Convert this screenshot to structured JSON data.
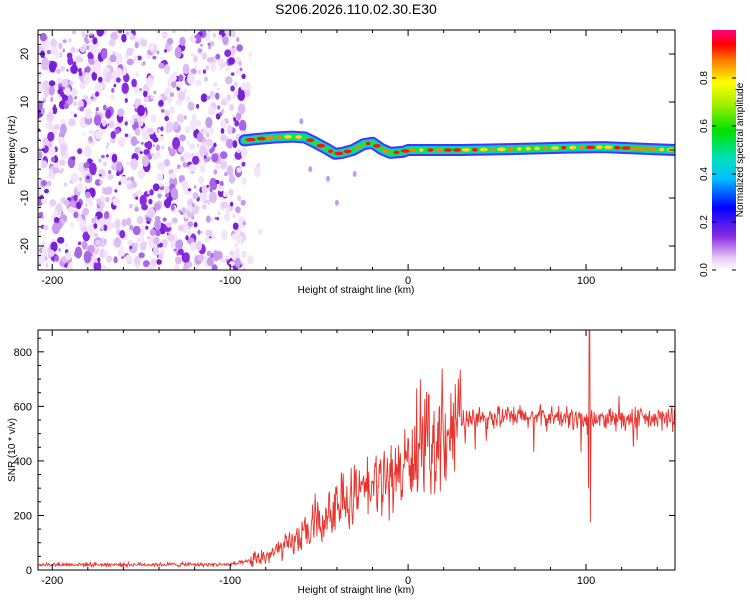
{
  "title": "S206.2026.110.02.30.E30",
  "chart_data": [
    {
      "type": "heatmap",
      "name": "spectrogram",
      "xlabel": "Height of straight line (km)",
      "ylabel": "Frequency (Hz)",
      "xlim": [
        -208,
        150
      ],
      "ylim": [
        -25,
        25
      ],
      "xticks": [
        -200,
        -100,
        0,
        100
      ],
      "yticks": [
        -20,
        -10,
        0,
        10,
        20
      ],
      "noise_region_x": [
        -208,
        -92
      ],
      "signal_track": [
        {
          "x": -92,
          "y": 2
        },
        {
          "x": -85,
          "y": 2.3
        },
        {
          "x": -75,
          "y": 2.6
        },
        {
          "x": -65,
          "y": 2.8
        },
        {
          "x": -58,
          "y": 2.6
        },
        {
          "x": -52,
          "y": 1.5
        },
        {
          "x": -46,
          "y": 0.3
        },
        {
          "x": -41,
          "y": -0.8
        },
        {
          "x": -37,
          "y": -0.6
        },
        {
          "x": -31,
          "y": 0
        },
        {
          "x": -25,
          "y": 1.2
        },
        {
          "x": -20,
          "y": 1.5
        },
        {
          "x": -15,
          "y": 0.2
        },
        {
          "x": -10,
          "y": -0.6
        },
        {
          "x": -3,
          "y": -0.4
        },
        {
          "x": 0,
          "y": 0
        },
        {
          "x": 30,
          "y": 0
        },
        {
          "x": 60,
          "y": 0.2
        },
        {
          "x": 90,
          "y": 0.5
        },
        {
          "x": 110,
          "y": 0.6
        },
        {
          "x": 130,
          "y": 0.3
        },
        {
          "x": 150,
          "y": 0
        }
      ],
      "colorbar": {
        "label": "Normalized spectral amplitude",
        "ticks": [
          "0.0",
          "0.2",
          "0.4",
          "0.6",
          "0.8"
        ],
        "range": [
          0,
          1
        ]
      }
    },
    {
      "type": "line",
      "name": "snr",
      "xlabel": "Height of straight line (km)",
      "ylabel": "SNR (10 * v/v)",
      "xlim": [
        -208,
        150
      ],
      "ylim": [
        0,
        880
      ],
      "xticks": [
        -200,
        -100,
        0,
        100
      ],
      "yticks": [
        0,
        200,
        400,
        600,
        800
      ],
      "color": "#e8342e",
      "trend": [
        {
          "x": -208,
          "y": 20
        },
        {
          "x": -100,
          "y": 20
        },
        {
          "x": -90,
          "y": 30
        },
        {
          "x": -80,
          "y": 50
        },
        {
          "x": -70,
          "y": 80
        },
        {
          "x": -60,
          "y": 120
        },
        {
          "x": -50,
          "y": 160
        },
        {
          "x": -40,
          "y": 220
        },
        {
          "x": -30,
          "y": 260
        },
        {
          "x": -20,
          "y": 300
        },
        {
          "x": -10,
          "y": 340
        },
        {
          "x": 0,
          "y": 390
        },
        {
          "x": 10,
          "y": 450
        },
        {
          "x": 20,
          "y": 510
        },
        {
          "x": 30,
          "y": 545
        },
        {
          "x": 40,
          "y": 560
        },
        {
          "x": 60,
          "y": 560
        },
        {
          "x": 80,
          "y": 560
        },
        {
          "x": 100,
          "y": 555
        },
        {
          "x": 120,
          "y": 550
        },
        {
          "x": 150,
          "y": 555
        }
      ],
      "spike": {
        "x": 102,
        "ymax": 880,
        "ymin": 175
      }
    }
  ]
}
